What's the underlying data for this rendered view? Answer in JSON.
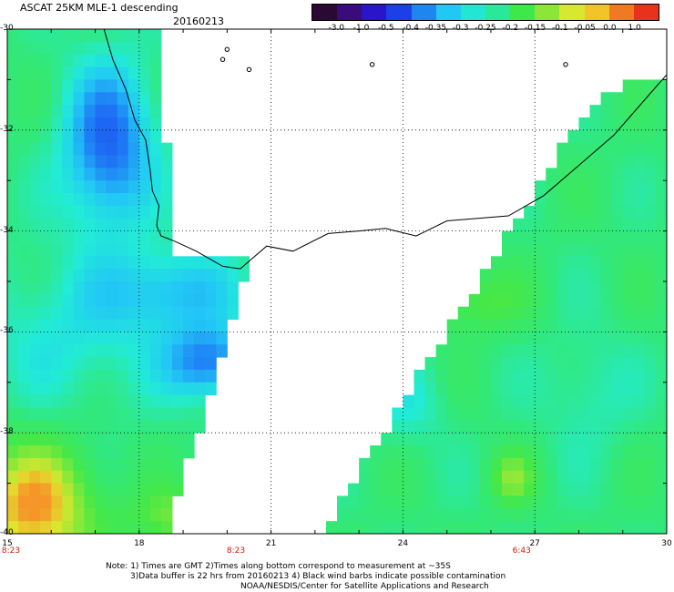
{
  "header": {
    "title": "ASCAT 25KM MLE-1 descending",
    "date": "20160213"
  },
  "colorbar": {
    "labels": [
      "-3.0",
      "-1.0",
      "-0.5",
      "-0.4",
      "-0.35",
      "-0.3",
      "-0.25",
      "-0.2",
      "-0.15",
      "-0.1",
      "-0.05",
      "0.0",
      "1.0"
    ],
    "colors": [
      "#2a0a33",
      "#3a0b7a",
      "#2a15c8",
      "#1c3fe6",
      "#1f86f0",
      "#22c8f4",
      "#22e6d2",
      "#28e89a",
      "#3ee84a",
      "#8ce63a",
      "#d8e830",
      "#f2c42a",
      "#f07a24",
      "#e8321e"
    ]
  },
  "map": {
    "lon_ticks": [
      "15",
      "18",
      "21",
      "24",
      "27",
      "30"
    ],
    "lat_ticks": [
      "-30",
      "-32",
      "-34",
      "-36",
      "-38",
      "-40"
    ],
    "time_labels": [
      {
        "text": "8:23",
        "lon": 15
      },
      {
        "text": "8:23",
        "lon": 20.2
      },
      {
        "text": "6:43",
        "lon": 26.7
      }
    ]
  },
  "notes": {
    "line1": "Note: 1) Times are GMT 2)Times along bottom correspond to measurement at ~35S",
    "line2": "3)Data buffer is 22 hrs from 20160213 4) Black wind barbs indicate possible contamination",
    "line3": "NOAA/NESDIS/Center for Satellite Applications and Research"
  }
}
